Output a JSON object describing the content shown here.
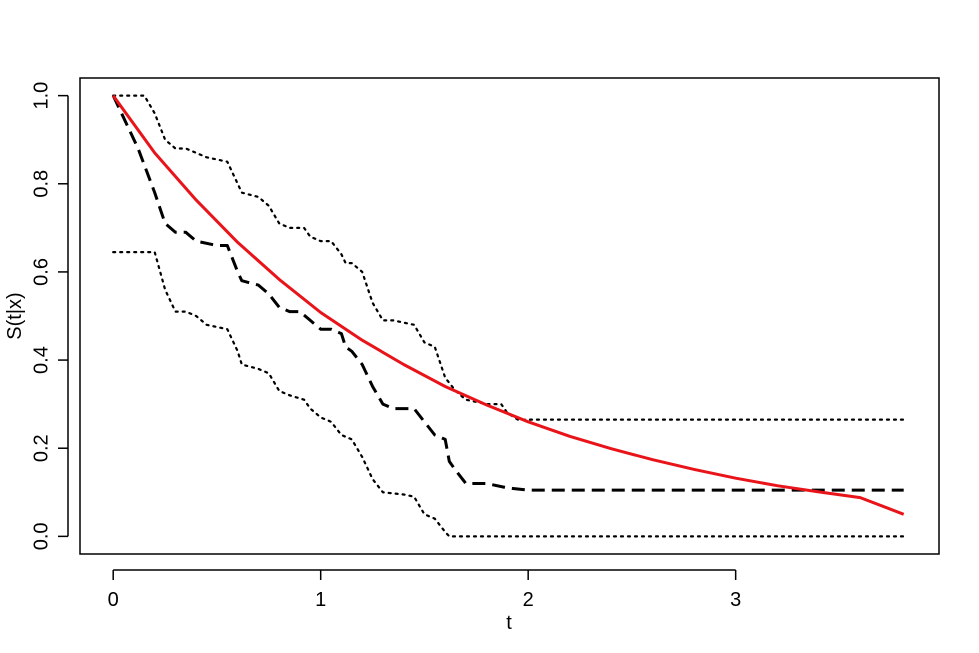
{
  "chart_data": {
    "type": "line",
    "title": "",
    "xlabel": "t",
    "ylabel": "S(t|x)",
    "xlim": [
      -0.16,
      3.98
    ],
    "ylim": [
      -0.04,
      1.04
    ],
    "x_ticks": [
      0,
      1,
      2,
      3
    ],
    "y_ticks": [
      0.0,
      0.2,
      0.4,
      0.6,
      0.8,
      1.0
    ],
    "x_tick_labels": [
      "0",
      "1",
      "2",
      "3"
    ],
    "y_tick_labels": [
      "0.0",
      "0.2",
      "0.4",
      "0.6",
      "0.8",
      "1.0"
    ],
    "grid": false,
    "legend": "none",
    "series": [
      {
        "style": "dashed",
        "color": "#000000",
        "points": [
          [
            0,
            1.0
          ],
          [
            0.05,
            0.95
          ],
          [
            0.12,
            0.88
          ],
          [
            0.2,
            0.78
          ],
          [
            0.25,
            0.71
          ],
          [
            0.3,
            0.69
          ],
          [
            0.35,
            0.69
          ],
          [
            0.4,
            0.67
          ],
          [
            0.5,
            0.66
          ],
          [
            0.55,
            0.66
          ],
          [
            0.6,
            0.6
          ],
          [
            0.62,
            0.58
          ],
          [
            0.7,
            0.57
          ],
          [
            0.75,
            0.55
          ],
          [
            0.8,
            0.52
          ],
          [
            0.85,
            0.51
          ],
          [
            0.9,
            0.51
          ],
          [
            0.95,
            0.49
          ],
          [
            1.0,
            0.47
          ],
          [
            1.05,
            0.47
          ],
          [
            1.1,
            0.46
          ],
          [
            1.12,
            0.43
          ],
          [
            1.15,
            0.42
          ],
          [
            1.2,
            0.39
          ],
          [
            1.25,
            0.34
          ],
          [
            1.3,
            0.3
          ],
          [
            1.35,
            0.29
          ],
          [
            1.4,
            0.29
          ],
          [
            1.45,
            0.29
          ],
          [
            1.5,
            0.26
          ],
          [
            1.55,
            0.23
          ],
          [
            1.6,
            0.22
          ],
          [
            1.62,
            0.17
          ],
          [
            1.65,
            0.15
          ],
          [
            1.7,
            0.12
          ],
          [
            1.8,
            0.12
          ],
          [
            1.9,
            0.11
          ],
          [
            2.0,
            0.105
          ],
          [
            3.81,
            0.105
          ]
        ]
      },
      {
        "style": "dotted",
        "color": "#000000",
        "points": [
          [
            0,
            1.0
          ],
          [
            0.15,
            1.0
          ],
          [
            0.2,
            0.96
          ],
          [
            0.25,
            0.9
          ],
          [
            0.3,
            0.88
          ],
          [
            0.35,
            0.88
          ],
          [
            0.4,
            0.87
          ],
          [
            0.45,
            0.86
          ],
          [
            0.55,
            0.85
          ],
          [
            0.6,
            0.8
          ],
          [
            0.62,
            0.78
          ],
          [
            0.7,
            0.77
          ],
          [
            0.75,
            0.75
          ],
          [
            0.8,
            0.71
          ],
          [
            0.85,
            0.7
          ],
          [
            0.92,
            0.7
          ],
          [
            0.95,
            0.68
          ],
          [
            1.0,
            0.67
          ],
          [
            1.05,
            0.67
          ],
          [
            1.1,
            0.64
          ],
          [
            1.12,
            0.62
          ],
          [
            1.15,
            0.62
          ],
          [
            1.2,
            0.6
          ],
          [
            1.25,
            0.53
          ],
          [
            1.3,
            0.49
          ],
          [
            1.35,
            0.49
          ],
          [
            1.45,
            0.48
          ],
          [
            1.5,
            0.44
          ],
          [
            1.55,
            0.43
          ],
          [
            1.6,
            0.36
          ],
          [
            1.65,
            0.33
          ],
          [
            1.7,
            0.31
          ],
          [
            1.8,
            0.3
          ],
          [
            1.87,
            0.3
          ],
          [
            1.9,
            0.28
          ],
          [
            1.95,
            0.265
          ],
          [
            3.81,
            0.265
          ]
        ]
      },
      {
        "style": "dotted",
        "color": "#000000",
        "points": [
          [
            0,
            0.645
          ],
          [
            0.2,
            0.645
          ],
          [
            0.25,
            0.56
          ],
          [
            0.3,
            0.51
          ],
          [
            0.35,
            0.51
          ],
          [
            0.4,
            0.5
          ],
          [
            0.45,
            0.48
          ],
          [
            0.55,
            0.47
          ],
          [
            0.6,
            0.42
          ],
          [
            0.62,
            0.39
          ],
          [
            0.7,
            0.38
          ],
          [
            0.75,
            0.37
          ],
          [
            0.8,
            0.33
          ],
          [
            0.85,
            0.32
          ],
          [
            0.92,
            0.31
          ],
          [
            0.95,
            0.29
          ],
          [
            1.0,
            0.27
          ],
          [
            1.05,
            0.26
          ],
          [
            1.1,
            0.23
          ],
          [
            1.15,
            0.22
          ],
          [
            1.2,
            0.18
          ],
          [
            1.25,
            0.13
          ],
          [
            1.3,
            0.1
          ],
          [
            1.4,
            0.095
          ],
          [
            1.45,
            0.09
          ],
          [
            1.5,
            0.05
          ],
          [
            1.55,
            0.04
          ],
          [
            1.6,
            0.01
          ],
          [
            1.62,
            0.0
          ],
          [
            3.81,
            0.0
          ]
        ]
      },
      {
        "style": "solid",
        "color": "#e8141a",
        "points": [
          [
            0,
            1.0
          ],
          [
            0.2,
            0.87
          ],
          [
            0.4,
            0.763
          ],
          [
            0.6,
            0.667
          ],
          [
            0.8,
            0.583
          ],
          [
            1.0,
            0.508
          ],
          [
            1.2,
            0.445
          ],
          [
            1.4,
            0.39
          ],
          [
            1.6,
            0.34
          ],
          [
            1.8,
            0.298
          ],
          [
            2.0,
            0.26
          ],
          [
            2.2,
            0.227
          ],
          [
            2.4,
            0.199
          ],
          [
            2.6,
            0.174
          ],
          [
            2.8,
            0.152
          ],
          [
            3.0,
            0.132
          ],
          [
            3.2,
            0.115
          ],
          [
            3.4,
            0.101
          ],
          [
            3.6,
            0.088
          ],
          [
            3.81,
            0.05
          ]
        ]
      }
    ]
  }
}
